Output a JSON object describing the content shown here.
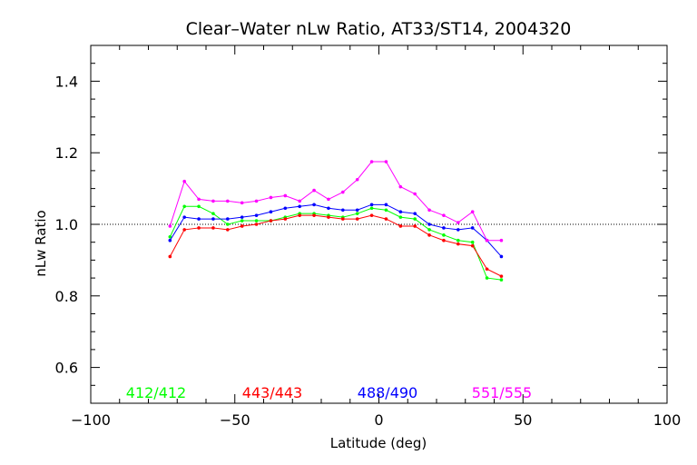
{
  "chart_data": {
    "type": "line",
    "title": "Clear–Water nLw Ratio, AT33/ST14, 2004320",
    "xlabel": "Latitude (deg)",
    "ylabel": "nLw Ratio",
    "xlim": [
      -100,
      100
    ],
    "ylim": [
      0.5,
      1.5
    ],
    "xticks": [
      -100,
      -50,
      0,
      50,
      100
    ],
    "yticks": [
      0.6,
      0.8,
      1.0,
      1.2,
      1.4
    ],
    "xtick_labels": [
      "−100",
      "−50",
      "0",
      "50",
      "100"
    ],
    "ytick_labels": [
      "0.6",
      "0.8",
      "1.0",
      "1.2",
      "1.4"
    ],
    "reference_line": 1.0,
    "grid": false,
    "legend_position": "bottom",
    "x": [
      -72.5,
      -67.5,
      -62.5,
      -57.5,
      -52.5,
      -47.5,
      -42.5,
      -37.5,
      -32.5,
      -27.5,
      -22.5,
      -17.5,
      -12.5,
      -7.5,
      -2.5,
      2.5,
      7.5,
      12.5,
      17.5,
      22.5,
      27.5,
      32.5,
      37.5,
      42.5
    ],
    "series": [
      {
        "name": "412/412",
        "color": "#00ff00",
        "values": [
          0.965,
          1.05,
          1.05,
          1.03,
          1.0,
          1.01,
          1.01,
          1.01,
          1.02,
          1.03,
          1.03,
          1.025,
          1.02,
          1.03,
          1.045,
          1.04,
          1.02,
          1.015,
          0.985,
          0.97,
          0.955,
          0.95,
          0.85,
          0.845
        ]
      },
      {
        "name": "443/443",
        "color": "#ff0000",
        "values": [
          0.91,
          0.985,
          0.99,
          0.99,
          0.985,
          0.995,
          1.0,
          1.01,
          1.015,
          1.025,
          1.025,
          1.02,
          1.015,
          1.015,
          1.025,
          1.015,
          0.995,
          0.995,
          0.97,
          0.955,
          0.945,
          0.94,
          0.875,
          0.855
        ]
      },
      {
        "name": "488/490",
        "color": "#0000ff",
        "values": [
          0.955,
          1.02,
          1.015,
          1.015,
          1.015,
          1.02,
          1.025,
          1.035,
          1.045,
          1.05,
          1.055,
          1.045,
          1.04,
          1.04,
          1.055,
          1.055,
          1.035,
          1.03,
          1.0,
          0.99,
          0.985,
          0.99,
          0.955,
          0.91
        ]
      },
      {
        "name": "551/555",
        "color": "#ff00ff",
        "values": [
          0.995,
          1.12,
          1.07,
          1.065,
          1.065,
          1.06,
          1.065,
          1.075,
          1.08,
          1.065,
          1.095,
          1.07,
          1.09,
          1.125,
          1.175,
          1.175,
          1.105,
          1.085,
          1.04,
          1.025,
          1.005,
          1.035,
          0.955,
          0.955
        ]
      }
    ]
  }
}
